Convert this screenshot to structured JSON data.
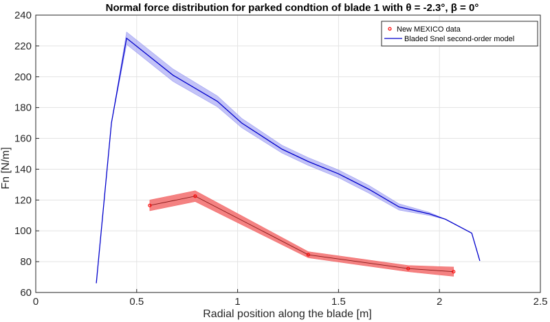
{
  "chart_data": {
    "type": "line",
    "title": "Normal force distribution for parked condtion of blade 1 with θ = -2.3°, β = 0°",
    "xlabel": "Radial position along the blade [m]",
    "ylabel": "Fn [N/m]",
    "xlim": [
      0,
      2.5
    ],
    "ylim": [
      60,
      240
    ],
    "xticks": [
      0,
      0.5,
      1,
      1.5,
      2,
      2.5
    ],
    "xtick_labels": [
      "0",
      "0.5",
      "1",
      "1.5",
      "2",
      "2.5"
    ],
    "yticks": [
      60,
      80,
      100,
      120,
      140,
      160,
      180,
      200,
      220,
      240
    ],
    "ytick_labels": [
      "60",
      "80",
      "100",
      "120",
      "140",
      "160",
      "180",
      "200",
      "220",
      "240"
    ],
    "grid": true,
    "legend_position": "top-right",
    "series": [
      {
        "name": "New MEXICO data",
        "style": "markers-with-band",
        "color": "#ff0000",
        "band_color": "#f26c6c",
        "x": [
          0.565,
          0.79,
          1.35,
          1.845,
          2.07
        ],
        "y": [
          116.5,
          122.5,
          84.5,
          75.5,
          73.5
        ],
        "band_halfwidth": [
          3.5,
          3.5,
          2.0,
          2.0,
          3.0
        ]
      },
      {
        "name": "Bladed Snel second-order model",
        "style": "line-with-band",
        "color": "#0000cc",
        "band_color": "#9b9bf2",
        "x": [
          0.3,
          0.375,
          0.45,
          0.68,
          0.9,
          1.02,
          1.22,
          1.35,
          1.5,
          1.65,
          1.8,
          1.95,
          2.03,
          2.16,
          2.2
        ],
        "y": [
          66,
          170,
          225,
          201,
          184,
          170,
          153,
          145,
          137,
          127,
          115.5,
          111,
          107.5,
          98.5,
          80.5
        ],
        "band_halfwidth": [
          0,
          0,
          4,
          4,
          3.5,
          3,
          2.5,
          2.5,
          2.5,
          2.5,
          2,
          1,
          0,
          0,
          0
        ]
      }
    ]
  }
}
